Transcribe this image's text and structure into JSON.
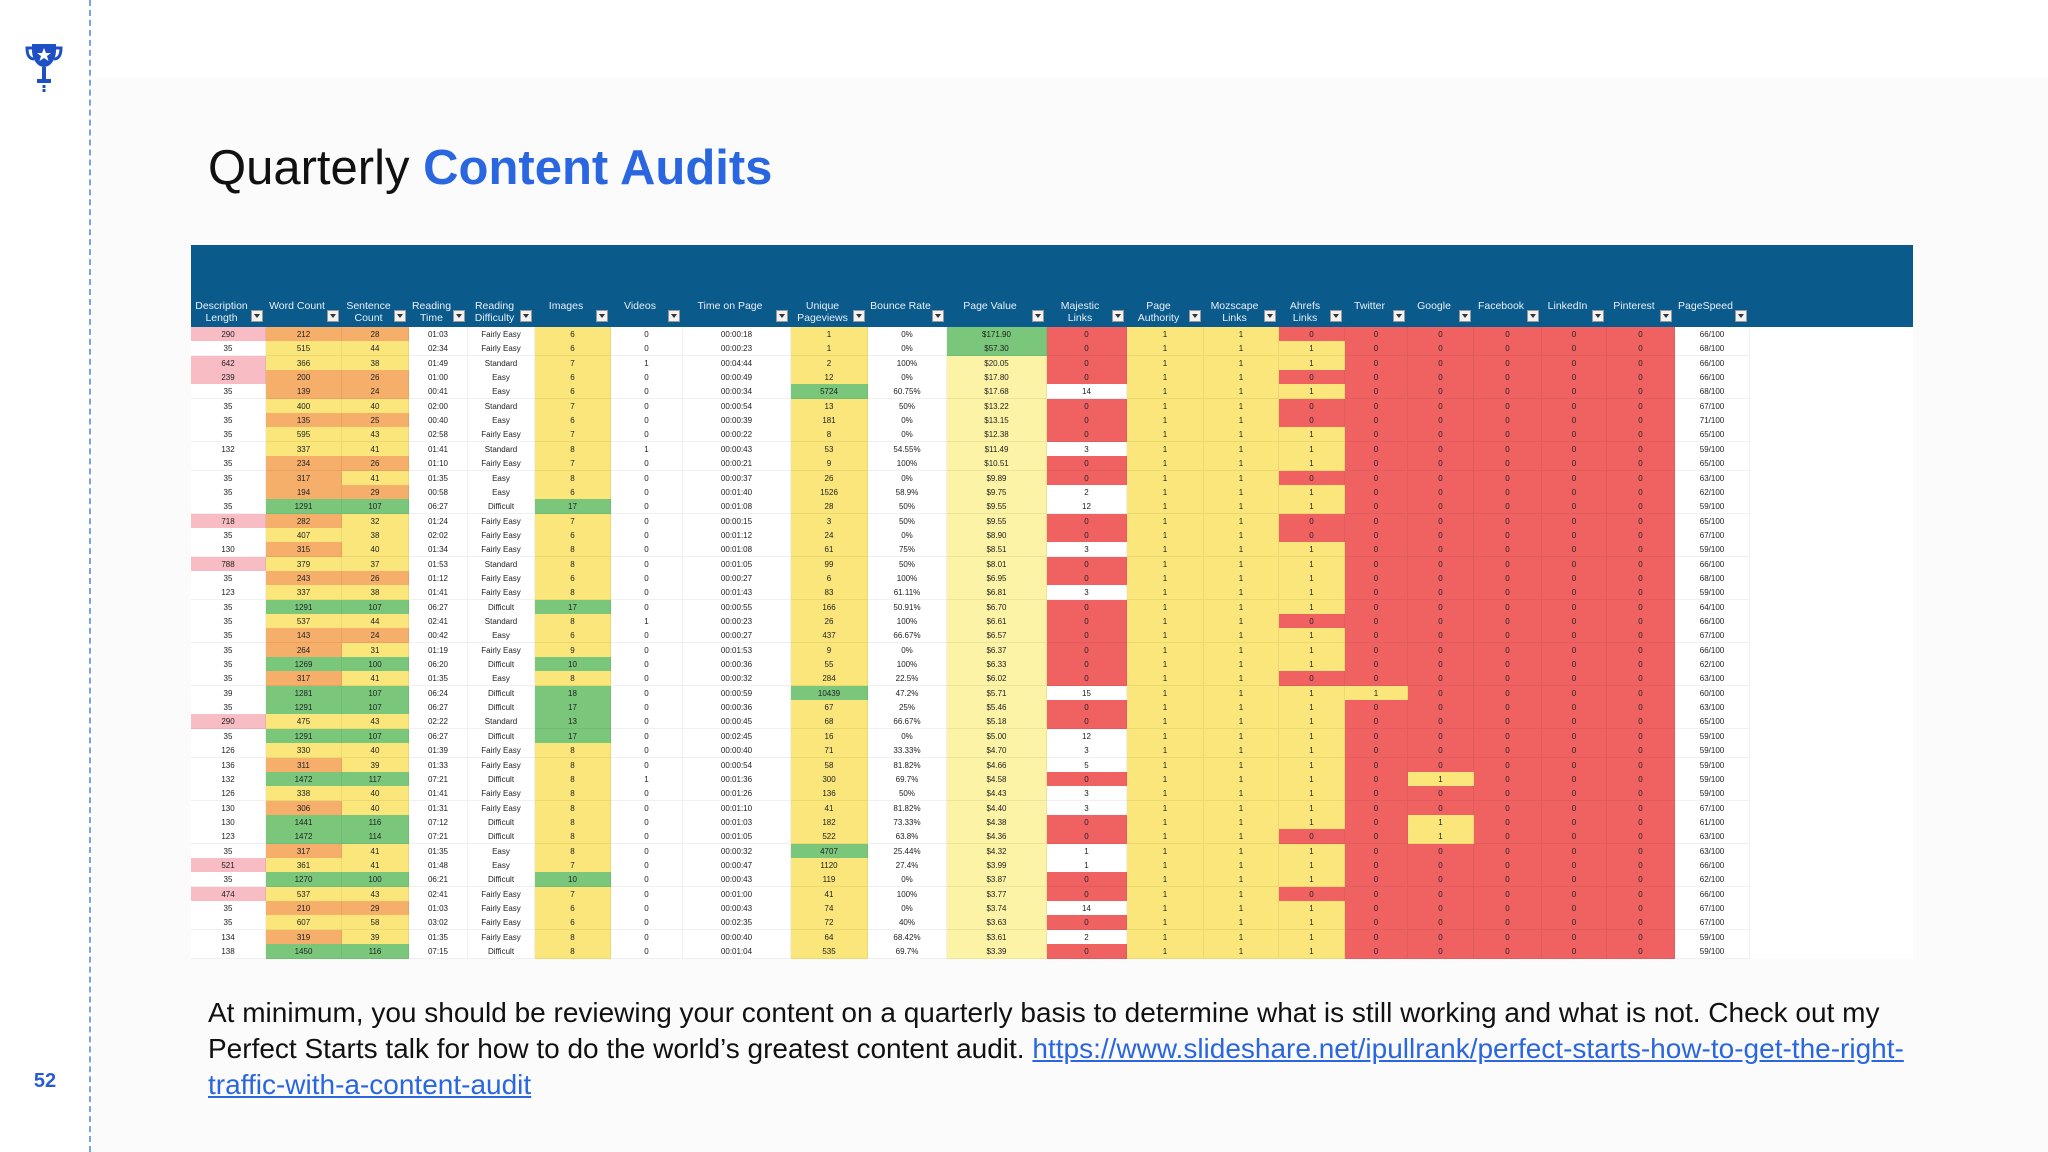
{
  "slide": {
    "page_number": "52",
    "title_plain": "Quarterly",
    "title_accent": "Content Audits",
    "body_text": "At minimum, you should be reviewing your content on a quarterly basis to determine what is still working and what is not. Check out my Perfect Starts talk for how to do the world’s greatest content audit.",
    "body_link": "https://www.slideshare.net/ipullrank/perfect-starts-how-to-get-the-right-traffic-with-a-content-audit"
  },
  "icons": {
    "logo": "trophy-icon",
    "filter": "filter-dropdown-icon"
  },
  "colors": {
    "accent": "#2a66e0",
    "header": "#0b5a8c",
    "red": "#f06262",
    "yellow": "#fae67a",
    "orange": "#f6ae6b",
    "green": "#7ac77b",
    "pink": "#f8bcc4",
    "yellow_light": "#fcf3a6"
  },
  "spreadsheet": {
    "columns": [
      "Description Length",
      "Word Count",
      "Sentence Count",
      "Reading Time",
      "Reading Difficulty",
      "Images",
      "Videos",
      "Time on Page",
      "Unique Pageviews",
      "Bounce Rate",
      "Page Value",
      "Majestic Links",
      "Page Authority",
      "Mozscape Links",
      "Ahrefs Links",
      "Twitter",
      "Google",
      "Facebook",
      "LinkedIn",
      "Pinterest",
      "PageSpeed"
    ],
    "rows": [
      [
        "290",
        "212",
        "28",
        "01:03",
        "Fairly Easy",
        "6",
        "0",
        "00:00:18",
        "1",
        "0%",
        "$171.90",
        "0",
        "1",
        "1",
        "0",
        "0",
        "0",
        "0",
        "0",
        "0",
        "66/100"
      ],
      [
        "35",
        "515",
        "44",
        "02:34",
        "Fairly Easy",
        "6",
        "0",
        "00:00:23",
        "1",
        "0%",
        "$57.30",
        "0",
        "1",
        "1",
        "1",
        "0",
        "0",
        "0",
        "0",
        "0",
        "68/100"
      ],
      [
        "642",
        "366",
        "38",
        "01:49",
        "Standard",
        "7",
        "1",
        "00:04:44",
        "2",
        "100%",
        "$20.05",
        "0",
        "1",
        "1",
        "1",
        "0",
        "0",
        "0",
        "0",
        "0",
        "66/100"
      ],
      [
        "239",
        "200",
        "26",
        "01:00",
        "Easy",
        "6",
        "0",
        "00:00:49",
        "12",
        "0%",
        "$17.80",
        "0",
        "1",
        "1",
        "0",
        "0",
        "0",
        "0",
        "0",
        "0",
        "66/100"
      ],
      [
        "35",
        "139",
        "24",
        "00:41",
        "Easy",
        "6",
        "0",
        "00:00:34",
        "5724",
        "60.75%",
        "$17.68",
        "14",
        "1",
        "1",
        "1",
        "0",
        "0",
        "0",
        "0",
        "0",
        "68/100"
      ],
      [
        "35",
        "400",
        "40",
        "02:00",
        "Standard",
        "7",
        "0",
        "00:00:54",
        "13",
        "50%",
        "$13.22",
        "0",
        "1",
        "1",
        "0",
        "0",
        "0",
        "0",
        "0",
        "0",
        "67/100"
      ],
      [
        "35",
        "135",
        "25",
        "00:40",
        "Easy",
        "6",
        "0",
        "00:00:39",
        "181",
        "0%",
        "$13.15",
        "0",
        "1",
        "1",
        "0",
        "0",
        "0",
        "0",
        "0",
        "0",
        "71/100"
      ],
      [
        "35",
        "595",
        "43",
        "02:58",
        "Fairly Easy",
        "7",
        "0",
        "00:00:22",
        "8",
        "0%",
        "$12.38",
        "0",
        "1",
        "1",
        "1",
        "0",
        "0",
        "0",
        "0",
        "0",
        "65/100"
      ],
      [
        "132",
        "337",
        "41",
        "01:41",
        "Standard",
        "8",
        "1",
        "00:00:43",
        "53",
        "54.55%",
        "$11.49",
        "3",
        "1",
        "1",
        "1",
        "0",
        "0",
        "0",
        "0",
        "0",
        "59/100"
      ],
      [
        "35",
        "234",
        "26",
        "01:10",
        "Fairly Easy",
        "7",
        "0",
        "00:00:21",
        "9",
        "100%",
        "$10.51",
        "0",
        "1",
        "1",
        "1",
        "0",
        "0",
        "0",
        "0",
        "0",
        "65/100"
      ],
      [
        "35",
        "317",
        "41",
        "01:35",
        "Easy",
        "8",
        "0",
        "00:00:37",
        "26",
        "0%",
        "$9.89",
        "0",
        "1",
        "1",
        "0",
        "0",
        "0",
        "0",
        "0",
        "0",
        "63/100"
      ],
      [
        "35",
        "194",
        "29",
        "00:58",
        "Easy",
        "6",
        "0",
        "00:01:40",
        "1526",
        "58.9%",
        "$9.75",
        "2",
        "1",
        "1",
        "1",
        "0",
        "0",
        "0",
        "0",
        "0",
        "62/100"
      ],
      [
        "35",
        "1291",
        "107",
        "06:27",
        "Difficult",
        "17",
        "0",
        "00:01:08",
        "28",
        "50%",
        "$9.55",
        "12",
        "1",
        "1",
        "1",
        "0",
        "0",
        "0",
        "0",
        "0",
        "59/100"
      ],
      [
        "718",
        "282",
        "32",
        "01:24",
        "Fairly Easy",
        "7",
        "0",
        "00:00:15",
        "3",
        "50%",
        "$9.55",
        "0",
        "1",
        "1",
        "0",
        "0",
        "0",
        "0",
        "0",
        "0",
        "65/100"
      ],
      [
        "35",
        "407",
        "38",
        "02:02",
        "Fairly Easy",
        "6",
        "0",
        "00:01:12",
        "24",
        "0%",
        "$8.90",
        "0",
        "1",
        "1",
        "0",
        "0",
        "0",
        "0",
        "0",
        "0",
        "67/100"
      ],
      [
        "130",
        "315",
        "40",
        "01:34",
        "Fairly Easy",
        "8",
        "0",
        "00:01:08",
        "61",
        "75%",
        "$8.51",
        "3",
        "1",
        "1",
        "1",
        "0",
        "0",
        "0",
        "0",
        "0",
        "59/100"
      ],
      [
        "788",
        "379",
        "37",
        "01:53",
        "Standard",
        "8",
        "0",
        "00:01:05",
        "99",
        "50%",
        "$8.01",
        "0",
        "1",
        "1",
        "1",
        "0",
        "0",
        "0",
        "0",
        "0",
        "66/100"
      ],
      [
        "35",
        "243",
        "26",
        "01:12",
        "Fairly Easy",
        "6",
        "0",
        "00:00:27",
        "6",
        "100%",
        "$6.95",
        "0",
        "1",
        "1",
        "1",
        "0",
        "0",
        "0",
        "0",
        "0",
        "68/100"
      ],
      [
        "123",
        "337",
        "38",
        "01:41",
        "Fairly Easy",
        "8",
        "0",
        "00:01:43",
        "83",
        "61.11%",
        "$6.81",
        "3",
        "1",
        "1",
        "1",
        "0",
        "0",
        "0",
        "0",
        "0",
        "59/100"
      ],
      [
        "35",
        "1291",
        "107",
        "06:27",
        "Difficult",
        "17",
        "0",
        "00:00:55",
        "166",
        "50.91%",
        "$6.70",
        "0",
        "1",
        "1",
        "1",
        "0",
        "0",
        "0",
        "0",
        "0",
        "64/100"
      ],
      [
        "35",
        "537",
        "44",
        "02:41",
        "Standard",
        "8",
        "1",
        "00:00:23",
        "26",
        "100%",
        "$6.61",
        "0",
        "1",
        "1",
        "0",
        "0",
        "0",
        "0",
        "0",
        "0",
        "66/100"
      ],
      [
        "35",
        "143",
        "24",
        "00:42",
        "Easy",
        "6",
        "0",
        "00:00:27",
        "437",
        "66.67%",
        "$6.57",
        "0",
        "1",
        "1",
        "1",
        "0",
        "0",
        "0",
        "0",
        "0",
        "67/100"
      ],
      [
        "35",
        "264",
        "31",
        "01:19",
        "Fairly Easy",
        "9",
        "0",
        "00:01:53",
        "9",
        "0%",
        "$6.37",
        "0",
        "1",
        "1",
        "1",
        "0",
        "0",
        "0",
        "0",
        "0",
        "66/100"
      ],
      [
        "35",
        "1269",
        "100",
        "06:20",
        "Difficult",
        "10",
        "0",
        "00:00:36",
        "55",
        "100%",
        "$6.33",
        "0",
        "1",
        "1",
        "1",
        "0",
        "0",
        "0",
        "0",
        "0",
        "62/100"
      ],
      [
        "35",
        "317",
        "41",
        "01:35",
        "Easy",
        "8",
        "0",
        "00:00:32",
        "284",
        "22.5%",
        "$6.02",
        "0",
        "1",
        "1",
        "0",
        "0",
        "0",
        "0",
        "0",
        "0",
        "63/100"
      ],
      [
        "39",
        "1281",
        "107",
        "06:24",
        "Difficult",
        "18",
        "0",
        "00:00:59",
        "10439",
        "47.2%",
        "$5.71",
        "15",
        "1",
        "1",
        "1",
        "1",
        "0",
        "0",
        "0",
        "0",
        "60/100"
      ],
      [
        "35",
        "1291",
        "107",
        "06:27",
        "Difficult",
        "17",
        "0",
        "00:00:36",
        "67",
        "25%",
        "$5.46",
        "0",
        "1",
        "1",
        "1",
        "0",
        "0",
        "0",
        "0",
        "0",
        "63/100"
      ],
      [
        "290",
        "475",
        "43",
        "02:22",
        "Standard",
        "13",
        "0",
        "00:00:45",
        "68",
        "66.67%",
        "$5.18",
        "0",
        "1",
        "1",
        "1",
        "0",
        "0",
        "0",
        "0",
        "0",
        "65/100"
      ],
      [
        "35",
        "1291",
        "107",
        "06:27",
        "Difficult",
        "17",
        "0",
        "00:02:45",
        "16",
        "0%",
        "$5.00",
        "12",
        "1",
        "1",
        "1",
        "0",
        "0",
        "0",
        "0",
        "0",
        "59/100"
      ],
      [
        "126",
        "330",
        "40",
        "01:39",
        "Fairly Easy",
        "8",
        "0",
        "00:00:40",
        "71",
        "33.33%",
        "$4.70",
        "3",
        "1",
        "1",
        "1",
        "0",
        "0",
        "0",
        "0",
        "0",
        "59/100"
      ],
      [
        "136",
        "311",
        "39",
        "01:33",
        "Fairly Easy",
        "8",
        "0",
        "00:00:54",
        "58",
        "81.82%",
        "$4.66",
        "5",
        "1",
        "1",
        "1",
        "0",
        "0",
        "0",
        "0",
        "0",
        "59/100"
      ],
      [
        "132",
        "1472",
        "117",
        "07:21",
        "Difficult",
        "8",
        "1",
        "00:01:36",
        "300",
        "69.7%",
        "$4.58",
        "0",
        "1",
        "1",
        "1",
        "0",
        "1",
        "0",
        "0",
        "0",
        "59/100"
      ],
      [
        "126",
        "338",
        "40",
        "01:41",
        "Fairly Easy",
        "8",
        "0",
        "00:01:26",
        "136",
        "50%",
        "$4.43",
        "3",
        "1",
        "1",
        "1",
        "0",
        "0",
        "0",
        "0",
        "0",
        "59/100"
      ],
      [
        "130",
        "306",
        "40",
        "01:31",
        "Fairly Easy",
        "8",
        "0",
        "00:01:10",
        "41",
        "81.82%",
        "$4.40",
        "3",
        "1",
        "1",
        "1",
        "0",
        "0",
        "0",
        "0",
        "0",
        "67/100"
      ],
      [
        "130",
        "1441",
        "116",
        "07:12",
        "Difficult",
        "8",
        "0",
        "00:01:03",
        "182",
        "73.33%",
        "$4.38",
        "0",
        "1",
        "1",
        "1",
        "0",
        "1",
        "0",
        "0",
        "0",
        "61/100"
      ],
      [
        "123",
        "1472",
        "114",
        "07:21",
        "Difficult",
        "8",
        "0",
        "00:01:05",
        "522",
        "63.8%",
        "$4.36",
        "0",
        "1",
        "1",
        "0",
        "0",
        "1",
        "0",
        "0",
        "0",
        "63/100"
      ],
      [
        "35",
        "317",
        "41",
        "01:35",
        "Easy",
        "8",
        "0",
        "00:00:32",
        "4707",
        "25.44%",
        "$4.32",
        "1",
        "1",
        "1",
        "1",
        "0",
        "0",
        "0",
        "0",
        "0",
        "63/100"
      ],
      [
        "521",
        "361",
        "41",
        "01:48",
        "Easy",
        "7",
        "0",
        "00:00:47",
        "1120",
        "27.4%",
        "$3.99",
        "1",
        "1",
        "1",
        "1",
        "0",
        "0",
        "0",
        "0",
        "0",
        "66/100"
      ],
      [
        "35",
        "1270",
        "100",
        "06:21",
        "Difficult",
        "10",
        "0",
        "00:00:43",
        "119",
        "0%",
        "$3.87",
        "0",
        "1",
        "1",
        "1",
        "0",
        "0",
        "0",
        "0",
        "0",
        "62/100"
      ],
      [
        "474",
        "537",
        "43",
        "02:41",
        "Fairly Easy",
        "7",
        "0",
        "00:01:00",
        "41",
        "100%",
        "$3.77",
        "0",
        "1",
        "1",
        "0",
        "0",
        "0",
        "0",
        "0",
        "0",
        "66/100"
      ],
      [
        "35",
        "210",
        "29",
        "01:03",
        "Fairly Easy",
        "6",
        "0",
        "00:00:43",
        "74",
        "0%",
        "$3.74",
        "14",
        "1",
        "1",
        "1",
        "0",
        "0",
        "0",
        "0",
        "0",
        "67/100"
      ],
      [
        "35",
        "607",
        "58",
        "03:02",
        "Fairly Easy",
        "6",
        "0",
        "00:02:35",
        "72",
        "40%",
        "$3.63",
        "0",
        "1",
        "1",
        "1",
        "0",
        "0",
        "0",
        "0",
        "0",
        "67/100"
      ],
      [
        "134",
        "319",
        "39",
        "01:35",
        "Fairly Easy",
        "8",
        "0",
        "00:00:40",
        "64",
        "68.42%",
        "$3.61",
        "2",
        "1",
        "1",
        "1",
        "0",
        "0",
        "0",
        "0",
        "0",
        "59/100"
      ],
      [
        "138",
        "1450",
        "116",
        "07:15",
        "Difficult",
        "8",
        "0",
        "00:01:04",
        "535",
        "69.7%",
        "$3.39",
        "0",
        "1",
        "1",
        "1",
        "0",
        "0",
        "0",
        "0",
        "0",
        "59/100"
      ]
    ]
  }
}
